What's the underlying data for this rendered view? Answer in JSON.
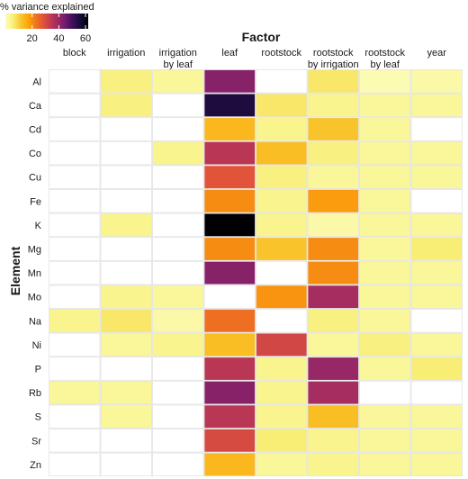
{
  "chart_data": {
    "type": "heatmap",
    "title": "",
    "xlabel": "Factor",
    "ylabel": "Element",
    "x_categories": [
      "block",
      "irrigation",
      "irrigation\nby leaf",
      "leaf",
      "rootstock",
      "rootstock\nby irrigation",
      "rootstock\nby leaf",
      "year"
    ],
    "y_categories": [
      "Al",
      "Ca",
      "Cd",
      "Co",
      "Cu",
      "Fe",
      "K",
      "Mg",
      "Mn",
      "Mo",
      "Na",
      "Ni",
      "P",
      "Rb",
      "S",
      "Sr",
      "Zn"
    ],
    "values": [
      [
        0,
        5,
        3,
        42,
        0,
        7,
        1,
        2
      ],
      [
        0,
        5,
        0,
        55,
        7,
        4,
        3,
        3
      ],
      [
        0,
        0,
        0,
        14,
        4,
        12,
        3,
        0
      ],
      [
        0,
        0,
        4,
        35,
        13,
        5,
        3,
        3
      ],
      [
        0,
        0,
        0,
        28,
        5,
        3,
        3,
        3
      ],
      [
        0,
        0,
        0,
        20,
        4,
        18,
        3,
        0
      ],
      [
        0,
        4,
        0,
        62,
        4,
        2,
        3,
        3
      ],
      [
        0,
        0,
        0,
        20,
        12,
        20,
        3,
        6
      ],
      [
        0,
        0,
        0,
        42,
        0,
        20,
        3,
        3
      ],
      [
        0,
        4,
        3,
        0,
        19,
        38,
        3,
        3
      ],
      [
        4,
        7,
        2,
        24,
        0,
        5,
        3,
        0
      ],
      [
        0,
        3,
        4,
        13,
        31,
        3,
        5,
        3
      ],
      [
        0,
        0,
        0,
        35,
        4,
        40,
        3,
        6
      ],
      [
        3,
        3,
        0,
        42,
        4,
        38,
        0,
        0
      ],
      [
        0,
        3,
        0,
        35,
        4,
        13,
        3,
        3
      ],
      [
        0,
        0,
        0,
        30,
        6,
        4,
        3,
        3
      ],
      [
        0,
        0,
        0,
        14,
        3,
        4,
        3,
        3
      ]
    ],
    "colorbar": {
      "label": "% variance explained",
      "range": [
        0,
        62
      ],
      "ticks": [
        20,
        40,
        60
      ],
      "colormap": "inferno-reversed"
    },
    "legend_position": "top-left",
    "grid": true,
    "colors": {
      "c0": "#ffffff",
      "c1": "#fcfdbf",
      "c2": "#f8f07a",
      "c3": "#f8c930",
      "c4": "#fca50a",
      "c5": "#f3771a",
      "c6": "#e0533a",
      "c7": "#c13a50",
      "c8": "#9b2964",
      "c9": "#6e1a6e",
      "c10": "#3c0f5a",
      "c11": "#140b35",
      "c12": "#000004"
    }
  }
}
